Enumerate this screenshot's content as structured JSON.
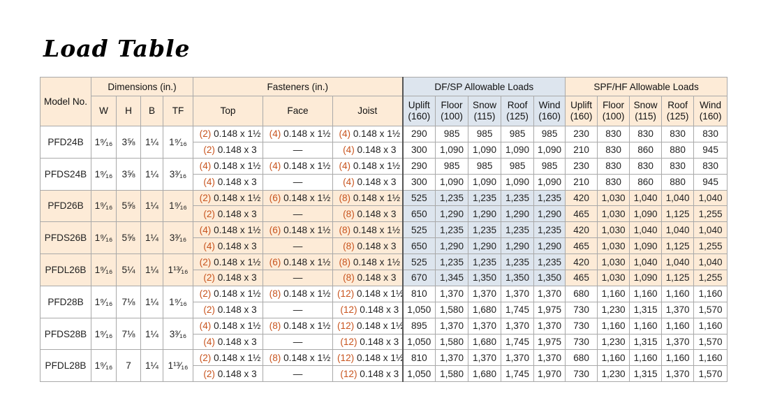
{
  "title": "Load Table",
  "headers": {
    "model": "Model No.",
    "dimensions": "Dimensions (in.)",
    "fasteners": "Fasteners (in.)",
    "df_sp": "DF/SP Allowable Loads",
    "spf_hf": "SPF/HF Allowable Loads",
    "dim_cols": [
      "W",
      "H",
      "B",
      "TF"
    ],
    "fast_cols": [
      "Top",
      "Face",
      "Joist"
    ],
    "load_cols": [
      {
        "label": "Uplift",
        "sub": "(160)"
      },
      {
        "label": "Floor",
        "sub": "(100)"
      },
      {
        "label": "Snow",
        "sub": "(115)"
      },
      {
        "label": "Roof",
        "sub": "(125)"
      },
      {
        "label": "Wind",
        "sub": "(160)"
      }
    ]
  },
  "models": [
    {
      "model": "PFD24B",
      "dims": [
        "1⁹⁄₁₆",
        "3⅝",
        "1¼",
        "1⁹⁄₁₆"
      ],
      "shaded": false,
      "rows": [
        {
          "top_n": "(2)",
          "top": "0.148 x 1½",
          "face_n": "(4)",
          "face": "0.148 x 1½",
          "joist_n": "(4)",
          "joist": "0.148 x 1½",
          "df": [
            "290",
            "985",
            "985",
            "985",
            "985"
          ],
          "spf": [
            "230",
            "830",
            "830",
            "830",
            "830"
          ]
        },
        {
          "top_n": "(2)",
          "top": "0.148 x 3",
          "face_n": "",
          "face": "—",
          "joist_n": "(4)",
          "joist": "0.148 x 3",
          "df": [
            "300",
            "1,090",
            "1,090",
            "1,090",
            "1,090"
          ],
          "spf": [
            "210",
            "830",
            "860",
            "880",
            "945"
          ]
        }
      ]
    },
    {
      "model": "PFDS24B",
      "dims": [
        "1⁹⁄₁₆",
        "3⅝",
        "1¼",
        "3³⁄₁₆"
      ],
      "shaded": false,
      "rows": [
        {
          "top_n": "(4)",
          "top": "0.148 x 1½",
          "face_n": "(4)",
          "face": "0.148 x 1½",
          "joist_n": "(4)",
          "joist": "0.148 x 1½",
          "df": [
            "290",
            "985",
            "985",
            "985",
            "985"
          ],
          "spf": [
            "230",
            "830",
            "830",
            "830",
            "830"
          ]
        },
        {
          "top_n": "(4)",
          "top": "0.148 x 3",
          "face_n": "",
          "face": "—",
          "joist_n": "(4)",
          "joist": "0.148 x 3",
          "df": [
            "300",
            "1,090",
            "1,090",
            "1,090",
            "1,090"
          ],
          "spf": [
            "210",
            "830",
            "860",
            "880",
            "945"
          ]
        }
      ]
    },
    {
      "model": "PFD26B",
      "dims": [
        "1⁹⁄₁₆",
        "5⅝",
        "1¼",
        "1⁹⁄₁₆"
      ],
      "shaded": true,
      "rows": [
        {
          "top_n": "(2)",
          "top": "0.148 x 1½",
          "face_n": "(6)",
          "face": "0.148 x 1½",
          "joist_n": "(8)",
          "joist": "0.148 x 1½",
          "df": [
            "525",
            "1,235",
            "1,235",
            "1,235",
            "1,235"
          ],
          "spf": [
            "420",
            "1,030",
            "1,040",
            "1,040",
            "1,040"
          ]
        },
        {
          "top_n": "(2)",
          "top": "0.148 x 3",
          "face_n": "",
          "face": "—",
          "joist_n": "(8)",
          "joist": "0.148 x 3",
          "df": [
            "650",
            "1,290",
            "1,290",
            "1,290",
            "1,290"
          ],
          "spf": [
            "465",
            "1,030",
            "1,090",
            "1,125",
            "1,255"
          ]
        }
      ]
    },
    {
      "model": "PFDS26B",
      "dims": [
        "1⁹⁄₁₆",
        "5⅝",
        "1¼",
        "3³⁄₁₆"
      ],
      "shaded": true,
      "rows": [
        {
          "top_n": "(4)",
          "top": "0.148 x 1½",
          "face_n": "(6)",
          "face": "0.148 x 1½",
          "joist_n": "(8)",
          "joist": "0.148 x 1½",
          "df": [
            "525",
            "1,235",
            "1,235",
            "1,235",
            "1,235"
          ],
          "spf": [
            "420",
            "1,030",
            "1,040",
            "1,040",
            "1,040"
          ]
        },
        {
          "top_n": "(4)",
          "top": "0.148 x 3",
          "face_n": "",
          "face": "—",
          "joist_n": "(8)",
          "joist": "0.148 x 3",
          "df": [
            "650",
            "1,290",
            "1,290",
            "1,290",
            "1,290"
          ],
          "spf": [
            "465",
            "1,030",
            "1,090",
            "1,125",
            "1,255"
          ]
        }
      ]
    },
    {
      "model": "PFDL26B",
      "dims": [
        "1⁹⁄₁₆",
        "5¼",
        "1¼",
        "1¹³⁄₁₆"
      ],
      "shaded": true,
      "rows": [
        {
          "top_n": "(2)",
          "top": "0.148 x 1½",
          "face_n": "(6)",
          "face": "0.148 x 1½",
          "joist_n": "(8)",
          "joist": "0.148 x 1½",
          "df": [
            "525",
            "1,235",
            "1,235",
            "1,235",
            "1,235"
          ],
          "spf": [
            "420",
            "1,030",
            "1,040",
            "1,040",
            "1,040"
          ]
        },
        {
          "top_n": "(2)",
          "top": "0.148 x 3",
          "face_n": "",
          "face": "—",
          "joist_n": "(8)",
          "joist": "0.148 x 3",
          "df": [
            "670",
            "1,345",
            "1,350",
            "1,350",
            "1,350"
          ],
          "spf": [
            "465",
            "1,030",
            "1,090",
            "1,125",
            "1,255"
          ]
        }
      ]
    },
    {
      "model": "PFD28B",
      "dims": [
        "1⁹⁄₁₆",
        "7⅛",
        "1¼",
        "1⁹⁄₁₆"
      ],
      "shaded": false,
      "rows": [
        {
          "top_n": "(2)",
          "top": "0.148 x 1½",
          "face_n": "(8)",
          "face": "0.148 x 1½",
          "joist_n": "(12)",
          "joist": "0.148 x 1½",
          "df": [
            "810",
            "1,370",
            "1,370",
            "1,370",
            "1,370"
          ],
          "spf": [
            "680",
            "1,160",
            "1,160",
            "1,160",
            "1,160"
          ]
        },
        {
          "top_n": "(2)",
          "top": "0.148 x 3",
          "face_n": "",
          "face": "—",
          "joist_n": "(12)",
          "joist": "0.148 x 3",
          "df": [
            "1,050",
            "1,580",
            "1,680",
            "1,745",
            "1,975"
          ],
          "spf": [
            "730",
            "1,230",
            "1,315",
            "1,370",
            "1,570"
          ]
        }
      ]
    },
    {
      "model": "PFDS28B",
      "dims": [
        "1⁹⁄₁₆",
        "7⅛",
        "1¼",
        "3³⁄₁₆"
      ],
      "shaded": false,
      "rows": [
        {
          "top_n": "(4)",
          "top": "0.148 x 1½",
          "face_n": "(8)",
          "face": "0.148 x 1½",
          "joist_n": "(12)",
          "joist": "0.148 x 1½",
          "df": [
            "895",
            "1,370",
            "1,370",
            "1,370",
            "1,370"
          ],
          "spf": [
            "730",
            "1,160",
            "1,160",
            "1,160",
            "1,160"
          ]
        },
        {
          "top_n": "(4)",
          "top": "0.148 x 3",
          "face_n": "",
          "face": "—",
          "joist_n": "(12)",
          "joist": "0.148 x 3",
          "df": [
            "1,050",
            "1,580",
            "1,680",
            "1,745",
            "1,975"
          ],
          "spf": [
            "730",
            "1,230",
            "1,315",
            "1,370",
            "1,570"
          ]
        }
      ]
    },
    {
      "model": "PFDL28B",
      "dims": [
        "1⁹⁄₁₆",
        "7",
        "1¼",
        "1¹³⁄₁₆"
      ],
      "shaded": false,
      "rows": [
        {
          "top_n": "(2)",
          "top": "0.148 x 1½",
          "face_n": "(8)",
          "face": "0.148 x 1½",
          "joist_n": "(12)",
          "joist": "0.148 x 1½",
          "df": [
            "810",
            "1,370",
            "1,370",
            "1,370",
            "1,370"
          ],
          "spf": [
            "680",
            "1,160",
            "1,160",
            "1,160",
            "1,160"
          ]
        },
        {
          "top_n": "(2)",
          "top": "0.148 x 3",
          "face_n": "",
          "face": "—",
          "joist_n": "(12)",
          "joist": "0.148 x 3",
          "df": [
            "1,050",
            "1,580",
            "1,680",
            "1,745",
            "1,970"
          ],
          "spf": [
            "730",
            "1,230",
            "1,315",
            "1,370",
            "1,570"
          ]
        }
      ]
    }
  ]
}
